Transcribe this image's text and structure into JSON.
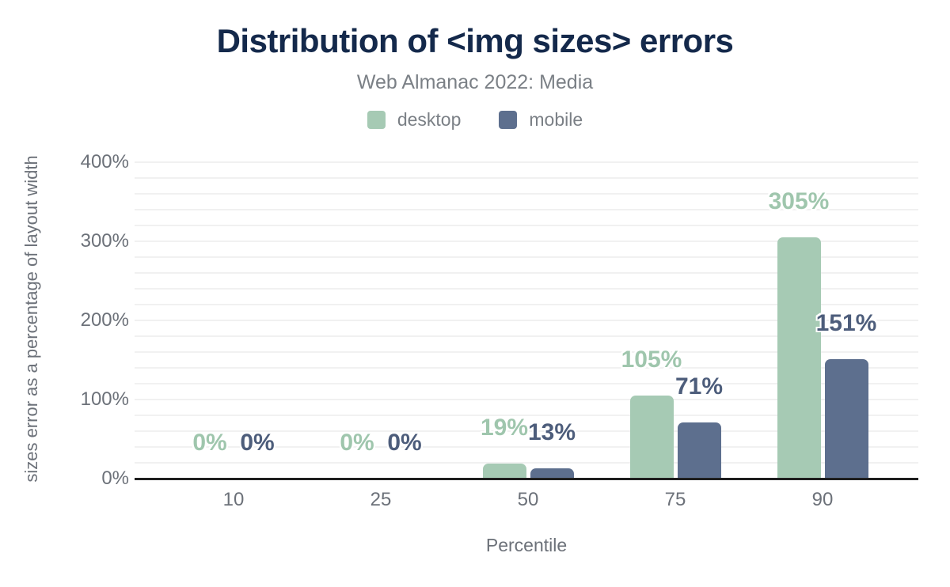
{
  "chart_data": {
    "type": "bar",
    "title": "Distribution of <img sizes> errors",
    "subtitle": "Web Almanac 2022: Media",
    "categories": [
      "10",
      "25",
      "50",
      "75",
      "90"
    ],
    "series": [
      {
        "name": "desktop",
        "color": "#a6cab4",
        "label_color": "#9fc6ad",
        "values": [
          0,
          0,
          19,
          105,
          305
        ],
        "data_labels": [
          "0%",
          "0%",
          "19%",
          "105%",
          "305%"
        ]
      },
      {
        "name": "mobile",
        "color": "#5d6f8e",
        "label_color": "#4d5d7b",
        "values": [
          0,
          0,
          13,
          71,
          151
        ],
        "data_labels": [
          "0%",
          "0%",
          "13%",
          "71%",
          "151%"
        ]
      }
    ],
    "xlabel": "Percentile",
    "ylabel": "sizes error as a percentage of layout width",
    "ylim": [
      0,
      400
    ],
    "ytick_labels": [
      "0%",
      "100%",
      "200%",
      "300%",
      "400%"
    ],
    "grid": {
      "horizontal": true,
      "minor_step_pct": 20,
      "color": "#f1f1f1"
    },
    "legend_position": "top",
    "colors": {
      "title": "#14294b",
      "subtitle": "#7b8086",
      "axis_text": "#6c7179",
      "axis_line": "#1f1f1f"
    }
  },
  "legend": {
    "items": [
      {
        "label": "desktop",
        "color": "#a6cab4"
      },
      {
        "label": "mobile",
        "color": "#5d6f8e"
      }
    ]
  }
}
